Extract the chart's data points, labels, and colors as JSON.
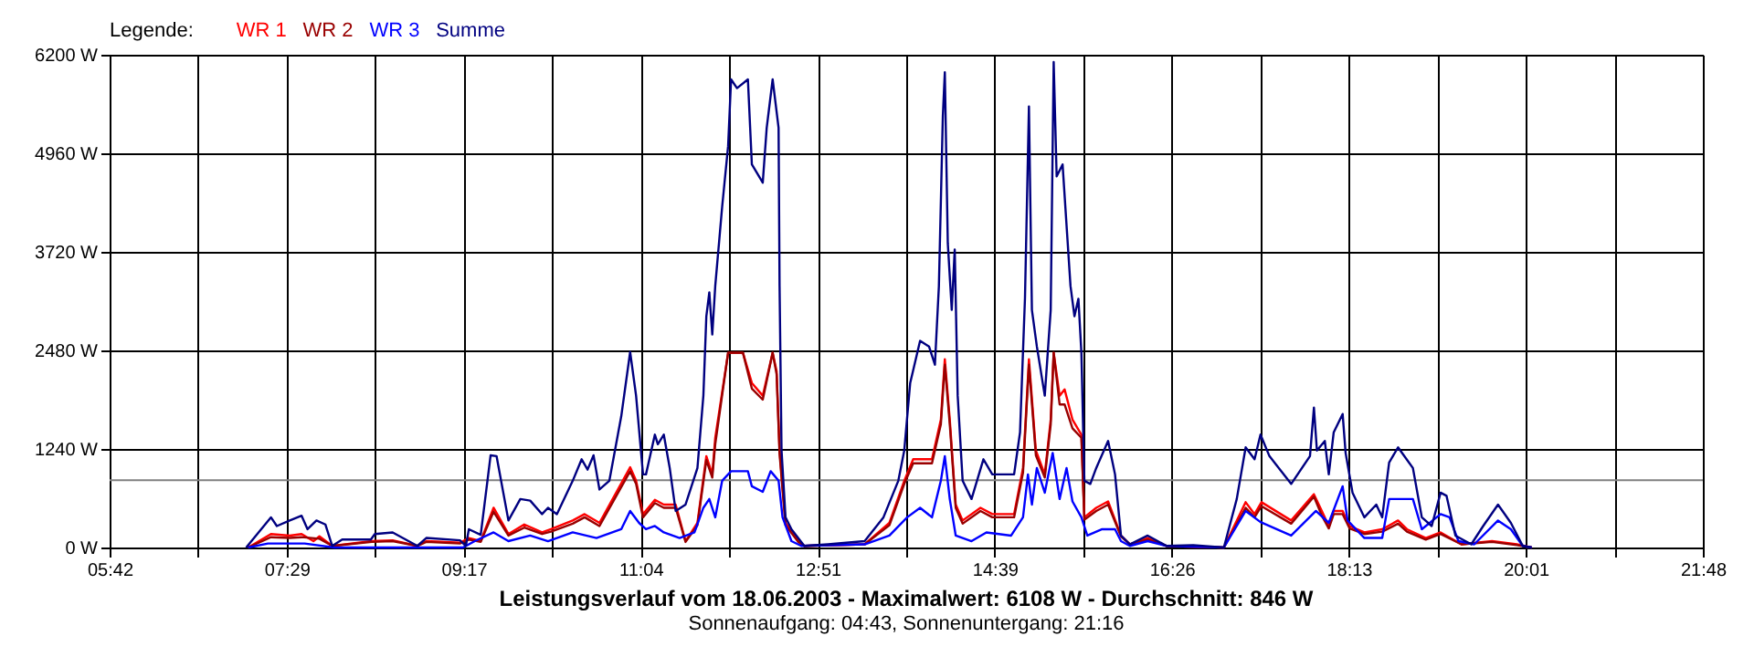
{
  "chart_data": {
    "type": "line",
    "title": "Leistungsverlauf vom 18.06.2003 - Maximalwert: 6108 W - Durchschnitt: 846 W",
    "subtitle": "Sonnenaufgang: 04:43, Sonnenuntergang: 21:16",
    "legend_title": "Legende:",
    "legend": "top left",
    "grid": true,
    "marker": "none",
    "line_style": "solid",
    "xlim": [
      5.7,
      21.8
    ],
    "xticks": [
      {
        "value": 5.7,
        "label": "05:42"
      },
      {
        "value": 6.5944,
        "label": null
      },
      {
        "value": 7.4889,
        "label": "07:29"
      },
      {
        "value": 8.3833,
        "label": null
      },
      {
        "value": 9.2778,
        "label": "09:17"
      },
      {
        "value": 10.1722,
        "label": null
      },
      {
        "value": 11.0667,
        "label": "11:04"
      },
      {
        "value": 11.9611,
        "label": null
      },
      {
        "value": 12.8556,
        "label": "12:51"
      },
      {
        "value": 13.75,
        "label": null
      },
      {
        "value": 14.6444,
        "label": "14:39"
      },
      {
        "value": 15.5389,
        "label": null
      },
      {
        "value": 16.4333,
        "label": "16:26"
      },
      {
        "value": 17.3278,
        "label": null
      },
      {
        "value": 18.2222,
        "label": "18:13"
      },
      {
        "value": 19.1167,
        "label": null
      },
      {
        "value": 20.0111,
        "label": "20:01"
      },
      {
        "value": 20.9056,
        "label": null
      },
      {
        "value": 21.8,
        "label": "21:48"
      }
    ],
    "ylim": [
      0,
      6200
    ],
    "yticks": [
      {
        "value": 0,
        "label": "0 W"
      },
      {
        "value": 1240,
        "label": "1240 W"
      },
      {
        "value": 2480,
        "label": "2480 W"
      },
      {
        "value": 3720,
        "label": "3720 W"
      },
      {
        "value": 4960,
        "label": "4960 W"
      },
      {
        "value": 6200,
        "label": "6200 W"
      }
    ],
    "ref_lines": [
      {
        "axis": "y",
        "value": 846,
        "color": "#808080"
      }
    ],
    "series": [
      {
        "name": "WR 1",
        "color": "#ff0000",
        "x": [
          7.1,
          7.33,
          7.52,
          7.64,
          7.76,
          7.82,
          7.95,
          8.35,
          8.56,
          8.81,
          8.9,
          9.24,
          9.33,
          9.45,
          9.58,
          9.73,
          9.89,
          10.07,
          10.16,
          10.38,
          10.5,
          10.65,
          10.96,
          11.02,
          11.09,
          11.21,
          11.3,
          11.42,
          11.52,
          11.64,
          11.73,
          11.79,
          11.82,
          11.95,
          12.1,
          12.19,
          12.3,
          12.4,
          12.44,
          12.47,
          12.53,
          12.66,
          12.72,
          13.33,
          13.58,
          13.73,
          13.82,
          14.01,
          14.1,
          14.14,
          14.19,
          14.25,
          14.32,
          14.5,
          14.62,
          14.84,
          14.93,
          14.99,
          15.06,
          15.15,
          15.21,
          15.24,
          15.3,
          15.35,
          15.43,
          15.52,
          15.55,
          15.67,
          15.79,
          15.92,
          16.01,
          16.19,
          16.38,
          16.96,
          17.18,
          17.27,
          17.34,
          17.64,
          17.87,
          17.95,
          18.02,
          18.07,
          18.16,
          18.23,
          18.38,
          18.56,
          18.72,
          18.81,
          19.0,
          19.15,
          19.36,
          19.67,
          19.92,
          20.07
        ],
        "values": [
          0,
          170,
          150,
          170,
          80,
          140,
          20,
          80,
          90,
          20,
          80,
          60,
          120,
          80,
          500,
          170,
          290,
          190,
          230,
          340,
          420,
          310,
          1010,
          840,
          420,
          600,
          540,
          540,
          80,
          310,
          1150,
          920,
          1380,
          2450,
          2450,
          2070,
          1910,
          2450,
          2220,
          1220,
          310,
          80,
          20,
          40,
          310,
          840,
          1110,
          1110,
          1610,
          2370,
          1610,
          540,
          340,
          500,
          420,
          420,
          1000,
          2370,
          1220,
          920,
          1610,
          2450,
          1910,
          1990,
          1610,
          1420,
          380,
          500,
          580,
          150,
          40,
          120,
          20,
          0,
          570,
          420,
          570,
          340,
          670,
          460,
          270,
          460,
          460,
          270,
          190,
          230,
          340,
          230,
          120,
          190,
          40,
          80,
          40,
          0
        ]
      },
      {
        "name": "WR 2",
        "color": "#990000",
        "x": [
          7.1,
          7.33,
          7.52,
          7.64,
          7.82,
          7.95,
          8.35,
          8.56,
          8.81,
          8.9,
          9.24,
          9.33,
          9.45,
          9.58,
          9.73,
          9.89,
          10.07,
          10.16,
          10.38,
          10.5,
          10.65,
          10.96,
          11.02,
          11.09,
          11.21,
          11.3,
          11.42,
          11.52,
          11.64,
          11.73,
          11.79,
          11.82,
          11.95,
          12.1,
          12.19,
          12.3,
          12.4,
          12.44,
          12.47,
          12.53,
          12.66,
          12.72,
          13.33,
          13.58,
          13.73,
          13.82,
          14.01,
          14.1,
          14.14,
          14.19,
          14.25,
          14.32,
          14.5,
          14.62,
          14.84,
          14.93,
          14.99,
          15.06,
          15.15,
          15.21,
          15.24,
          15.3,
          15.35,
          15.43,
          15.52,
          15.55,
          15.67,
          15.79,
          15.92,
          16.01,
          16.19,
          16.38,
          16.96,
          17.18,
          17.27,
          17.34,
          17.64,
          17.87,
          17.95,
          18.02,
          18.07,
          18.16,
          18.23,
          18.38,
          18.56,
          18.72,
          18.81,
          19.0,
          19.15,
          19.36,
          19.67,
          19.92,
          20.07
        ],
        "values": [
          0,
          130,
          120,
          130,
          110,
          20,
          70,
          80,
          20,
          70,
          50,
          100,
          70,
          450,
          150,
          250,
          170,
          200,
          300,
          380,
          270,
          960,
          800,
          380,
          560,
          500,
          500,
          70,
          280,
          1100,
          880,
          1300,
          2450,
          2450,
          2000,
          1860,
          2450,
          2180,
          1180,
          280,
          70,
          20,
          40,
          280,
          800,
          1060,
          1060,
          1550,
          2300,
          1550,
          500,
          300,
          460,
          380,
          380,
          940,
          2300,
          1160,
          880,
          1550,
          2450,
          1800,
          1800,
          1500,
          1380,
          350,
          460,
          540,
          140,
          40,
          100,
          20,
          0,
          500,
          380,
          520,
          300,
          640,
          400,
          240,
          420,
          420,
          240,
          170,
          200,
          300,
          200,
          100,
          170,
          40,
          70,
          30,
          0
        ]
      },
      {
        "name": "WR 3",
        "color": "#0000ff",
        "x": [
          7.1,
          7.3,
          7.67,
          7.97,
          8.5,
          9.27,
          9.39,
          9.58,
          9.73,
          9.95,
          10.13,
          10.38,
          10.62,
          10.87,
          10.96,
          11.05,
          11.12,
          11.21,
          11.3,
          11.46,
          11.61,
          11.7,
          11.76,
          11.82,
          11.89,
          11.98,
          12.15,
          12.19,
          12.3,
          12.38,
          12.46,
          12.5,
          12.59,
          12.69,
          13.33,
          13.58,
          13.76,
          13.89,
          14.01,
          14.1,
          14.14,
          14.19,
          14.25,
          14.41,
          14.56,
          14.81,
          14.93,
          14.98,
          15.02,
          15.07,
          15.15,
          15.23,
          15.3,
          15.37,
          15.43,
          15.52,
          15.58,
          15.73,
          15.86,
          15.92,
          16.01,
          16.19,
          16.38,
          16.96,
          17.18,
          17.33,
          17.64,
          17.89,
          18.02,
          18.16,
          18.21,
          18.38,
          18.56,
          18.63,
          18.87,
          18.96,
          19.15,
          19.24,
          19.33,
          19.49,
          19.73,
          19.86,
          19.98,
          20.07
        ],
        "values": [
          0,
          50,
          50,
          0,
          0,
          0,
          80,
          190,
          80,
          150,
          80,
          190,
          120,
          230,
          460,
          310,
          230,
          270,
          190,
          120,
          190,
          500,
          610,
          380,
          840,
          960,
          960,
          770,
          700,
          960,
          840,
          380,
          80,
          20,
          40,
          150,
          380,
          500,
          380,
          840,
          1150,
          610,
          150,
          80,
          190,
          150,
          380,
          920,
          540,
          1000,
          690,
          1190,
          610,
          1000,
          580,
          380,
          150,
          230,
          230,
          80,
          20,
          80,
          20,
          0,
          460,
          320,
          150,
          460,
          310,
          770,
          340,
          120,
          120,
          610,
          610,
          230,
          420,
          380,
          80,
          40,
          340,
          230,
          20,
          0
        ]
      },
      {
        "name": "Summe",
        "color": "#000080",
        "x": [
          7.08,
          7.33,
          7.39,
          7.52,
          7.64,
          7.7,
          7.79,
          7.88,
          7.95,
          8.05,
          8.34,
          8.38,
          8.56,
          8.81,
          8.9,
          9.24,
          9.3,
          9.33,
          9.45,
          9.55,
          9.61,
          9.73,
          9.85,
          9.95,
          10.07,
          10.13,
          10.22,
          10.38,
          10.47,
          10.53,
          10.59,
          10.65,
          10.75,
          10.87,
          10.96,
          11.02,
          11.09,
          11.12,
          11.21,
          11.24,
          11.3,
          11.36,
          11.42,
          11.52,
          11.64,
          11.7,
          11.73,
          11.76,
          11.79,
          11.82,
          11.89,
          11.95,
          11.98,
          12.04,
          12.15,
          12.19,
          12.3,
          12.34,
          12.4,
          12.46,
          12.47,
          12.49,
          12.53,
          12.59,
          12.72,
          12.96,
          13.33,
          13.52,
          13.67,
          13.73,
          13.79,
          13.89,
          13.98,
          14.04,
          14.08,
          14.12,
          14.14,
          14.17,
          14.21,
          14.24,
          14.27,
          14.32,
          14.41,
          14.53,
          14.62,
          14.84,
          14.9,
          14.95,
          14.99,
          15.02,
          15.07,
          15.15,
          15.21,
          15.24,
          15.27,
          15.33,
          15.41,
          15.45,
          15.49,
          15.52,
          15.55,
          15.61,
          15.67,
          15.79,
          15.86,
          15.92,
          16.01,
          16.19,
          16.38,
          16.65,
          16.96,
          17.09,
          17.18,
          17.27,
          17.33,
          17.42,
          17.64,
          17.83,
          17.87,
          17.9,
          17.98,
          18.02,
          18.07,
          18.16,
          18.19,
          18.26,
          18.38,
          18.5,
          18.56,
          18.63,
          18.72,
          18.87,
          18.96,
          19.06,
          19.15,
          19.21,
          19.3,
          19.46,
          19.58,
          19.73,
          19.86,
          19.98,
          20.07
        ],
        "values": [
          0,
          380,
          270,
          340,
          400,
          230,
          340,
          290,
          20,
          100,
          100,
          170,
          190,
          20,
          120,
          90,
          20,
          230,
          160,
          1160,
          1150,
          340,
          610,
          590,
          420,
          500,
          420,
          840,
          1110,
          980,
          1160,
          730,
          840,
          1650,
          2460,
          1910,
          920,
          920,
          1420,
          1300,
          1420,
          1000,
          460,
          540,
          1000,
          1910,
          2910,
          3210,
          2680,
          3290,
          4290,
          5050,
          5890,
          5780,
          5890,
          4820,
          4590,
          5280,
          5890,
          5280,
          3290,
          1220,
          380,
          230,
          20,
          40,
          80,
          380,
          840,
          1220,
          2070,
          2600,
          2530,
          2300,
          3290,
          5430,
          5980,
          3830,
          2990,
          3750,
          1910,
          840,
          610,
          1110,
          920,
          920,
          1450,
          3140,
          5550,
          2990,
          2530,
          1910,
          2990,
          6108,
          4670,
          4820,
          3290,
          2910,
          3130,
          2450,
          840,
          800,
          1000,
          1340,
          920,
          150,
          40,
          150,
          20,
          30,
          0,
          610,
          1260,
          1110,
          1420,
          1150,
          800,
          1150,
          1760,
          1220,
          1340,
          920,
          1450,
          1680,
          1190,
          690,
          380,
          540,
          380,
          1070,
          1260,
          1000,
          380,
          270,
          690,
          650,
          150,
          40,
          270,
          540,
          310,
          20,
          0
        ]
      }
    ]
  }
}
